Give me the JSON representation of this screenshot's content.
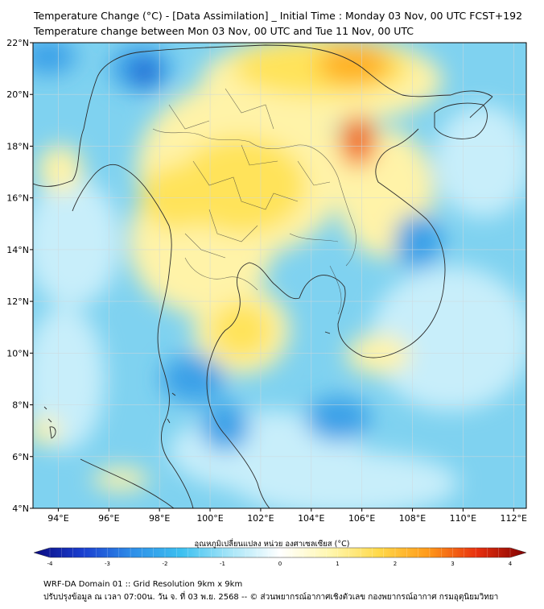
{
  "title": {
    "line1": "Temperature Change (°C) - [Data Assimilation] _ Initial Time : Monday 03 Nov, 00 UTC FCST+192",
    "line2": "Temperature change between Mon 03 Nov, 00 UTC and Tue 11 Nov, 00 UTC"
  },
  "map": {
    "lon_range": [
      93,
      112.5
    ],
    "lat_range": [
      4,
      22
    ],
    "lat_ticks": [
      {
        "value": 22,
        "label": "22°N"
      },
      {
        "value": 20,
        "label": "20°N"
      },
      {
        "value": 18,
        "label": "18°N"
      },
      {
        "value": 16,
        "label": "16°N"
      },
      {
        "value": 14,
        "label": "14°N"
      },
      {
        "value": 12,
        "label": "12°N"
      },
      {
        "value": 10,
        "label": "10°N"
      },
      {
        "value": 8,
        "label": "8°N"
      },
      {
        "value": 6,
        "label": "6°N"
      },
      {
        "value": 4,
        "label": "4°N"
      }
    ],
    "lon_ticks": [
      {
        "value": 94,
        "label": "94°E"
      },
      {
        "value": 96,
        "label": "96°E"
      },
      {
        "value": 98,
        "label": "98°E"
      },
      {
        "value": 100,
        "label": "100°E"
      },
      {
        "value": 102,
        "label": "102°E"
      },
      {
        "value": 104,
        "label": "104°E"
      },
      {
        "value": 106,
        "label": "106°E"
      },
      {
        "value": 108,
        "label": "108°E"
      },
      {
        "value": 110,
        "label": "110°E"
      },
      {
        "value": 112,
        "label": "112°E"
      }
    ],
    "colors": {
      "ocean_base": "#7fd2f0",
      "warm_light": "#fff3a8",
      "warm": "#ffe35a",
      "hot": "#ffb020",
      "hotter": "#f26a1b",
      "cold": "#3aa0e8",
      "colder": "#1f5fd0",
      "coldest": "#0a2fa0",
      "neutral": "#c8eefa",
      "coast": "#2b2b2b"
    }
  },
  "colorbar": {
    "label": "อุณหภูมิเปลี่ยนแปลง หน่วย องศาเซลเซียส (°C)",
    "min": -4,
    "max": 4,
    "ticks": [
      {
        "value": -4,
        "label": "-4"
      },
      {
        "value": -3,
        "label": "-3"
      },
      {
        "value": -2,
        "label": "-2"
      },
      {
        "value": -1,
        "label": "-1"
      },
      {
        "value": 0,
        "label": "0"
      },
      {
        "value": 1,
        "label": "1"
      },
      {
        "value": 2,
        "label": "2"
      },
      {
        "value": 3,
        "label": "3"
      },
      {
        "value": 4,
        "label": "4"
      }
    ],
    "stops": [
      "#0a0a80",
      "#1a3fd0",
      "#2e8ee8",
      "#3cc0f0",
      "#a8e6f8",
      "#ffffff",
      "#fff7b0",
      "#ffd94a",
      "#ff9a1a",
      "#e8300f",
      "#800000"
    ]
  },
  "footer": {
    "line1": "WRF-DA Domain 01 :: Grid Resolution 9km x 9km",
    "line2": "ปรับปรุงข้อมูล ณ เวลา 07:00น. วัน จ. ที่ 03 พ.ย. 2568 -- © ส่วนพยากรณ์อากาศเชิงตัวเลข กองพยากรณ์อากาศ กรมอุตุนิยมวิทยา"
  }
}
